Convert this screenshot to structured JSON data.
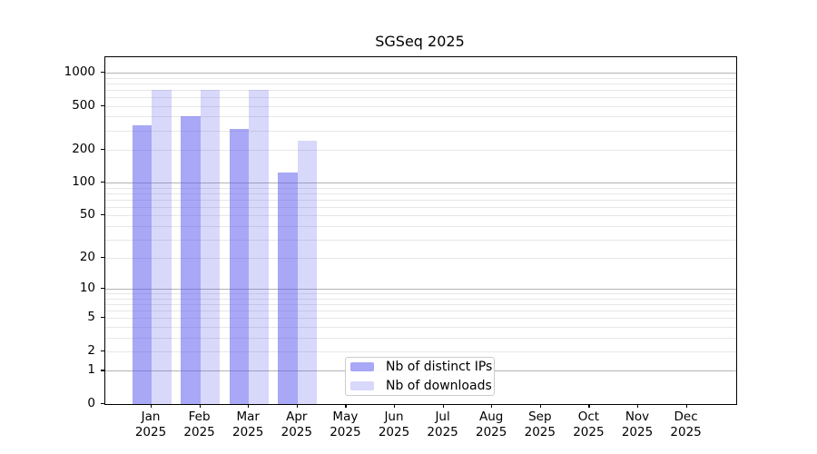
{
  "title": "SGSeq 2025",
  "chart_data": {
    "type": "bar",
    "title": "SGSeq 2025",
    "y_scale": "log1p (ticks at 0,1,2,5,10,... on log10(1+v) axis)",
    "ylim": [
      0,
      1380
    ],
    "grid": "both",
    "legend_position": "inside plot, lower-left-of-center",
    "months": [
      "Jan",
      "Feb",
      "Mar",
      "Apr",
      "May",
      "Jun",
      "Jul",
      "Aug",
      "Sep",
      "Oct",
      "Nov",
      "Dec"
    ],
    "year": "2025",
    "series": [
      {
        "name": "Nb of distinct IPs",
        "color": "rgba(88,88,238,0.52)",
        "values": [
          333,
          405,
          309,
          123,
          0,
          0,
          0,
          0,
          0,
          0,
          0,
          0
        ]
      },
      {
        "name": "Nb of downloads",
        "color": "rgba(88,88,238,0.23)",
        "values": [
          702,
          694,
          702,
          243,
          0,
          0,
          0,
          0,
          0,
          0,
          0,
          0
        ]
      }
    ],
    "y_ticks": [
      0,
      1,
      2,
      5,
      10,
      20,
      50,
      100,
      200,
      500,
      1000
    ],
    "y_tick_labels": [
      "0",
      "1",
      "2",
      "5",
      "10",
      "20",
      "50",
      "100",
      "200",
      "500",
      "1000"
    ]
  },
  "colors": {
    "bar_base": "#5858ee",
    "major_grid": "#b3b3b3",
    "minor_grid": "#e7e7e7",
    "axis": "#000000",
    "legend_border": "#cccccc"
  }
}
